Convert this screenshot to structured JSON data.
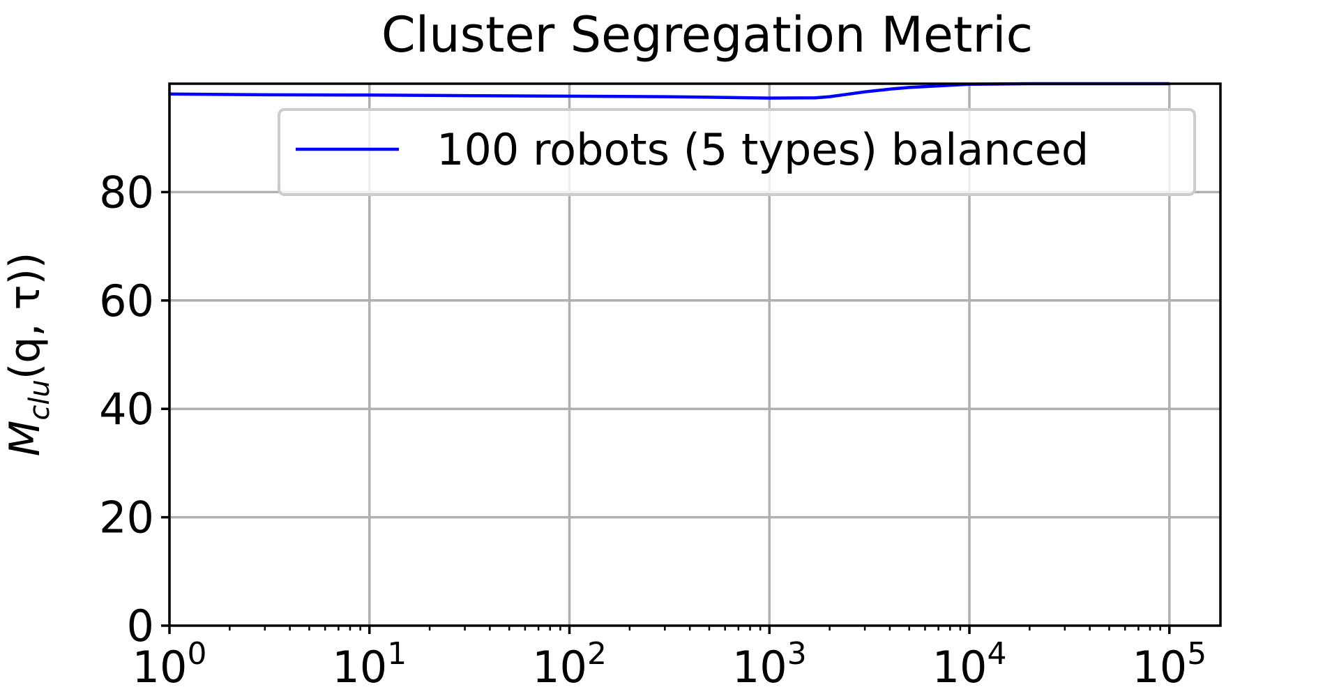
{
  "chart_data": {
    "type": "line",
    "title": "Cluster Segregation Metric",
    "xlabel": "",
    "ylabel": {
      "base": "M",
      "subscript": "clu",
      "args": "(q, τ))"
    },
    "x_scale": "log",
    "xlim": [
      1,
      180000
    ],
    "ylim": [
      0,
      100
    ],
    "x_ticks": [
      {
        "value": 1,
        "label_base": "10",
        "label_exp": "0"
      },
      {
        "value": 10,
        "label_base": "10",
        "label_exp": "1"
      },
      {
        "value": 100,
        "label_base": "10",
        "label_exp": "2"
      },
      {
        "value": 1000,
        "label_base": "10",
        "label_exp": "3"
      },
      {
        "value": 10000,
        "label_base": "10",
        "label_exp": "4"
      },
      {
        "value": 100000,
        "label_base": "10",
        "label_exp": "5"
      }
    ],
    "y_ticks": [
      0,
      20,
      40,
      60,
      80
    ],
    "y_tick_labels": [
      "0",
      "20",
      "40",
      "60",
      "80"
    ],
    "grid": true,
    "legend_position": "top-right",
    "series": [
      {
        "name": "100 robots (5 types) balanced",
        "color": "#0000ff",
        "x": [
          1,
          3,
          10,
          30,
          100,
          300,
          800,
          1000,
          1700,
          2000,
          2500,
          3000,
          4000,
          5000,
          7000,
          10000,
          20000,
          50000,
          100000
        ],
        "y": [
          98.1,
          97.95,
          97.9,
          97.8,
          97.7,
          97.6,
          97.4,
          97.35,
          97.4,
          97.6,
          98.1,
          98.5,
          99.0,
          99.3,
          99.6,
          99.9,
          100,
          100,
          100
        ]
      }
    ]
  }
}
